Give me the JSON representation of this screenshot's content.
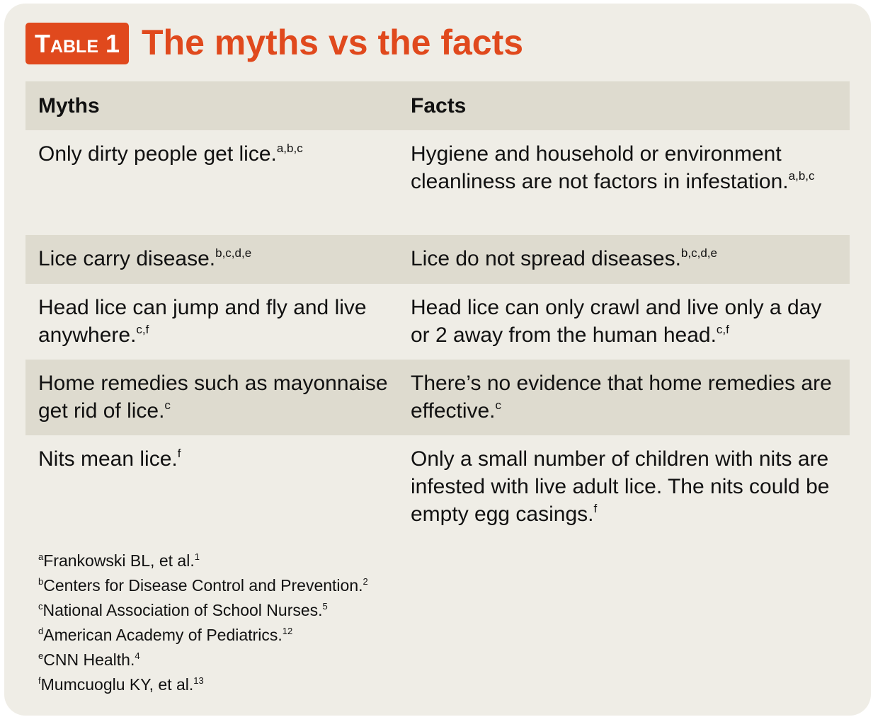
{
  "header": {
    "label": "Table 1",
    "title": "The myths vs the facts"
  },
  "table": {
    "columns": [
      "Myths",
      "Facts"
    ],
    "rows": [
      [
        {
          "text": "Only dirty people get lice.",
          "sup": "a,b,c"
        },
        {
          "text": "Hygiene and household or environment cleanliness are not factors in infestation.",
          "sup": "a,b,c"
        }
      ],
      [
        {
          "text": "Lice carry disease.",
          "sup": "b,c,d,e"
        },
        {
          "text": "Lice do not spread diseases.",
          "sup": "b,c,d,e"
        }
      ],
      [
        {
          "text": "Head lice can jump and fly and live anywhere.",
          "sup": "c,f"
        },
        {
          "text": "Head lice can only crawl and live only a day or 2 away from the human head.",
          "sup": "c,f"
        }
      ],
      [
        {
          "text": "Home remedies such as mayonnaise get rid of lice.",
          "sup": "c"
        },
        {
          "text": "There’s no evidence that home remedies are effective.",
          "sup": "c"
        }
      ],
      [
        {
          "text": "Nits mean lice.",
          "sup": "f"
        },
        {
          "text": "Only a small number of children with nits are infested with live adult lice. The nits could be empty egg casings.",
          "sup": "f"
        }
      ]
    ]
  },
  "footnotes": [
    {
      "mark": "a",
      "text": "Frankowski BL, et al.",
      "ref": "1"
    },
    {
      "mark": "b",
      "text": "Centers for Disease Control and Prevention.",
      "ref": "2"
    },
    {
      "mark": "c",
      "text": "National Association of School Nurses.",
      "ref": "5"
    },
    {
      "mark": "d",
      "text": "American Academy of Pediatrics.",
      "ref": "12"
    },
    {
      "mark": "e",
      "text": "CNN Health.",
      "ref": "4"
    },
    {
      "mark": "f",
      "text": "Mumcuoglu KY, et al.",
      "ref": "13"
    }
  ]
}
